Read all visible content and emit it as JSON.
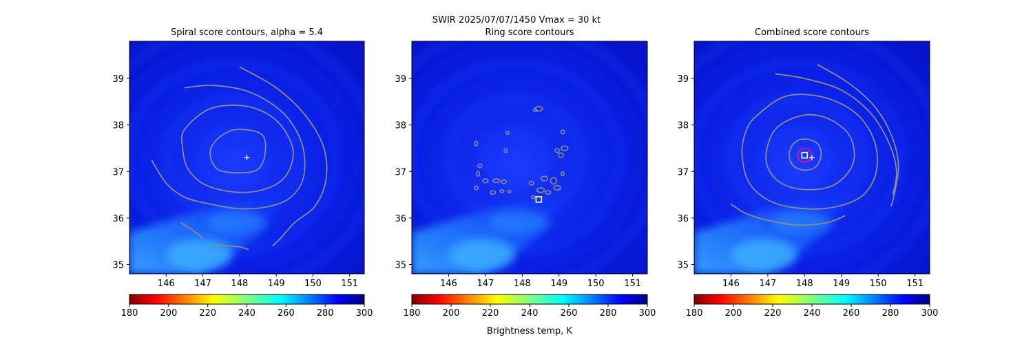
{
  "figure": {
    "suptitle": "SWIR  2025/07/07/1450    Vmax = 30 kt",
    "colorbar_label": "Brightness temp, K"
  },
  "chart_data": [
    {
      "type": "heatmap",
      "panel": "spiral",
      "title": "Spiral score contours, alpha =  5.4",
      "xlim": [
        145.0,
        151.4
      ],
      "ylim": [
        34.8,
        39.8
      ],
      "x_ticks": [
        146,
        147,
        148,
        149,
        150,
        151
      ],
      "y_ticks": [
        35,
        36,
        37,
        38,
        39
      ],
      "colorbar": {
        "cmap": "jet_r",
        "range": [
          180,
          300
        ],
        "ticks": [
          180,
          200,
          220,
          240,
          260,
          280,
          300
        ]
      },
      "markers": [
        {
          "kind": "plus",
          "lon": 148.2,
          "lat": 37.3,
          "color": "#ffffff"
        }
      ],
      "contour_color": "#8c8c8c"
    },
    {
      "type": "heatmap",
      "panel": "ring",
      "title": "Ring score contours",
      "xlim": [
        145.0,
        151.4
      ],
      "ylim": [
        34.8,
        39.8
      ],
      "x_ticks": [
        146,
        147,
        148,
        149,
        150,
        151
      ],
      "y_ticks": [
        35,
        36,
        37,
        38,
        39
      ],
      "colorbar": {
        "cmap": "jet_r",
        "range": [
          180,
          300
        ],
        "ticks": [
          180,
          200,
          220,
          240,
          260,
          280,
          300
        ]
      },
      "markers": [
        {
          "kind": "square",
          "lon": 148.45,
          "lat": 36.4,
          "color": "#ffffff"
        }
      ],
      "contour_color": "#8c8c8c"
    },
    {
      "type": "heatmap",
      "panel": "combined",
      "title": "Combined score contours",
      "xlim": [
        145.0,
        151.4
      ],
      "ylim": [
        34.8,
        39.8
      ],
      "x_ticks": [
        146,
        147,
        148,
        149,
        150,
        151
      ],
      "y_ticks": [
        35,
        36,
        37,
        38,
        39
      ],
      "colorbar": {
        "cmap": "jet_r",
        "range": [
          180,
          300
        ],
        "ticks": [
          180,
          200,
          220,
          240,
          260,
          280,
          300
        ]
      },
      "markers": [
        {
          "kind": "circle",
          "lon": 148.0,
          "lat": 37.35,
          "color": "#e0109a"
        },
        {
          "kind": "square",
          "lon": 148.0,
          "lat": 37.35,
          "color": "#ffffff"
        },
        {
          "kind": "plus",
          "lon": 148.2,
          "lat": 37.3,
          "color": "#ffffff"
        }
      ],
      "contour_color": "#8c8c8c"
    }
  ]
}
